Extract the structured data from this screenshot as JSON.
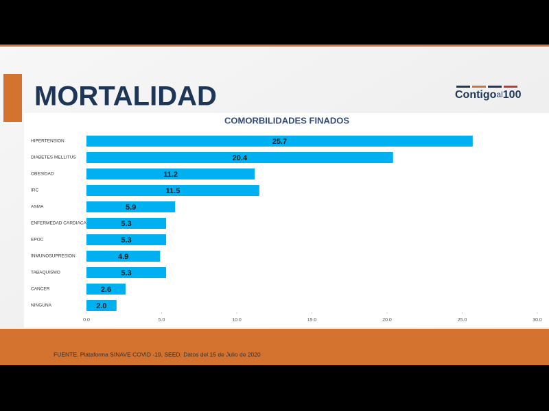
{
  "slide": {
    "title": "MORTALIDAD",
    "logo": [
      "Contigo",
      "al",
      "100"
    ],
    "source": "FUENTE. Plataforma SINAVE COVID -19, SEED. Datos del 15 de Julio de 2020"
  },
  "chart_data": {
    "type": "bar",
    "orientation": "horizontal",
    "title": "COMORBILIDADES FINADOS",
    "categories": [
      "HIPERTENSION",
      "DIABETES MELLITUS",
      "OBESIDAD",
      "IRC",
      "ASMA",
      "ENFERMEDAD CARDIACA",
      "EPOC",
      "INMUNOSUPRESION",
      "TABAQUISMO",
      "CANCER",
      "NINGUNA"
    ],
    "values": [
      25.7,
      20.4,
      11.2,
      11.5,
      5.9,
      5.3,
      5.3,
      4.9,
      5.3,
      2.6,
      2
    ],
    "value_labels": [
      "25.7",
      "20.4",
      "11.2",
      "11.5",
      "5.9",
      "5.3",
      "5.3",
      "4.9",
      "5.3",
      "2.6",
      "2.0"
    ],
    "color": "#00b0f0",
    "xlim": [
      0,
      30
    ],
    "xticks": [
      {
        "value": 0,
        "label": "0.0"
      },
      {
        "value": 5,
        "label": "5.0"
      },
      {
        "value": 10,
        "label": "10.0"
      },
      {
        "value": 15,
        "label": "15.0"
      },
      {
        "value": 20,
        "label": "20.0"
      },
      {
        "value": 25,
        "label": "25.0"
      },
      {
        "value": 30,
        "label": "30.0"
      }
    ]
  }
}
